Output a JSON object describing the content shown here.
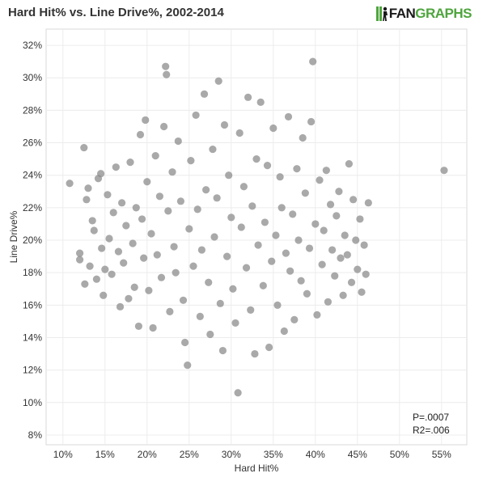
{
  "header": {
    "title": "Hard Hit% vs. Line Drive%, 2002-2014",
    "logo_left": "FAN",
    "logo_right": "GRAPHS",
    "logo_color": "#4fa53e"
  },
  "stats": {
    "p_value": "P=.0007",
    "r2": "R2=.006"
  },
  "chart_data": {
    "type": "scatter",
    "title": "Hard Hit% vs. Line Drive%, 2002-2014",
    "xlabel": "Hard Hit%",
    "ylabel": "Line Drive%",
    "xlim": [
      8,
      58
    ],
    "ylim": [
      7.4,
      33
    ],
    "x_ticks": [
      10,
      15,
      20,
      25,
      30,
      35,
      40,
      45,
      50,
      55
    ],
    "y_ticks": [
      8,
      10,
      12,
      14,
      16,
      18,
      20,
      22,
      24,
      26,
      28,
      30,
      32
    ],
    "x_tick_labels": [
      "10%",
      "15%",
      "20%",
      "25%",
      "30%",
      "35%",
      "40%",
      "45%",
      "50%",
      "55%"
    ],
    "y_tick_labels": [
      "8%",
      "10%",
      "12%",
      "14%",
      "16%",
      "18%",
      "20%",
      "22%",
      "24%",
      "26%",
      "28%",
      "30%",
      "32%"
    ],
    "grid": true,
    "point_color": "#8c8c8c",
    "points": [
      [
        10.8,
        23.5
      ],
      [
        12.0,
        19.2
      ],
      [
        12.0,
        18.8
      ],
      [
        12.5,
        25.7
      ],
      [
        12.6,
        17.3
      ],
      [
        12.8,
        22.5
      ],
      [
        13.0,
        23.2
      ],
      [
        13.2,
        18.4
      ],
      [
        13.5,
        21.2
      ],
      [
        13.7,
        20.6
      ],
      [
        14.0,
        17.6
      ],
      [
        14.2,
        23.8
      ],
      [
        14.5,
        24.1
      ],
      [
        14.6,
        19.5
      ],
      [
        14.8,
        16.6
      ],
      [
        15.0,
        18.2
      ],
      [
        15.3,
        22.8
      ],
      [
        15.5,
        20.1
      ],
      [
        15.8,
        17.9
      ],
      [
        16.0,
        21.7
      ],
      [
        16.3,
        24.5
      ],
      [
        16.6,
        19.3
      ],
      [
        16.8,
        15.9
      ],
      [
        17.0,
        22.3
      ],
      [
        17.2,
        18.6
      ],
      [
        17.5,
        20.9
      ],
      [
        17.8,
        16.4
      ],
      [
        18.0,
        24.8
      ],
      [
        18.3,
        19.8
      ],
      [
        18.5,
        17.1
      ],
      [
        18.7,
        22.0
      ],
      [
        19.0,
        14.7
      ],
      [
        19.2,
        26.5
      ],
      [
        19.4,
        21.3
      ],
      [
        19.6,
        18.9
      ],
      [
        19.8,
        27.4
      ],
      [
        20.0,
        23.6
      ],
      [
        20.2,
        16.9
      ],
      [
        20.5,
        20.4
      ],
      [
        20.7,
        14.6
      ],
      [
        21.0,
        25.2
      ],
      [
        21.2,
        19.1
      ],
      [
        21.5,
        22.7
      ],
      [
        21.7,
        17.7
      ],
      [
        22.0,
        27.0
      ],
      [
        22.2,
        30.7
      ],
      [
        22.3,
        30.2
      ],
      [
        22.5,
        21.8
      ],
      [
        22.7,
        15.6
      ],
      [
        23.0,
        24.2
      ],
      [
        23.2,
        19.6
      ],
      [
        23.4,
        18.0
      ],
      [
        23.7,
        26.1
      ],
      [
        24.0,
        22.4
      ],
      [
        24.3,
        16.3
      ],
      [
        24.5,
        13.7
      ],
      [
        24.8,
        12.3
      ],
      [
        25.0,
        20.7
      ],
      [
        25.2,
        24.9
      ],
      [
        25.5,
        18.4
      ],
      [
        25.8,
        27.7
      ],
      [
        26.0,
        21.9
      ],
      [
        26.3,
        15.3
      ],
      [
        26.5,
        19.4
      ],
      [
        26.8,
        29.0
      ],
      [
        27.0,
        23.1
      ],
      [
        27.3,
        17.4
      ],
      [
        27.5,
        14.2
      ],
      [
        27.8,
        25.6
      ],
      [
        28.0,
        20.2
      ],
      [
        28.3,
        22.6
      ],
      [
        28.5,
        29.8
      ],
      [
        28.7,
        16.1
      ],
      [
        29.0,
        13.2
      ],
      [
        29.2,
        27.1
      ],
      [
        29.5,
        19.0
      ],
      [
        29.7,
        24.0
      ],
      [
        30.0,
        21.4
      ],
      [
        30.2,
        17.0
      ],
      [
        30.5,
        14.9
      ],
      [
        30.8,
        10.6
      ],
      [
        31.0,
        26.6
      ],
      [
        31.2,
        20.8
      ],
      [
        31.5,
        23.3
      ],
      [
        31.8,
        18.3
      ],
      [
        32.0,
        28.8
      ],
      [
        32.3,
        15.7
      ],
      [
        32.5,
        22.1
      ],
      [
        32.8,
        13.0
      ],
      [
        33.0,
        25.0
      ],
      [
        33.2,
        19.7
      ],
      [
        33.5,
        28.5
      ],
      [
        33.8,
        17.2
      ],
      [
        34.0,
        21.1
      ],
      [
        34.3,
        24.6
      ],
      [
        34.5,
        13.4
      ],
      [
        34.8,
        18.7
      ],
      [
        35.0,
        26.9
      ],
      [
        35.3,
        20.3
      ],
      [
        35.5,
        16.0
      ],
      [
        35.8,
        23.9
      ],
      [
        36.0,
        22.0
      ],
      [
        36.3,
        14.4
      ],
      [
        36.5,
        19.2
      ],
      [
        36.8,
        27.6
      ],
      [
        37.0,
        18.1
      ],
      [
        37.3,
        21.6
      ],
      [
        37.5,
        15.1
      ],
      [
        37.8,
        24.4
      ],
      [
        38.0,
        20.0
      ],
      [
        38.3,
        17.5
      ],
      [
        38.5,
        26.3
      ],
      [
        38.8,
        22.9
      ],
      [
        39.0,
        16.7
      ],
      [
        39.3,
        19.5
      ],
      [
        39.5,
        27.3
      ],
      [
        39.7,
        31.0
      ],
      [
        40.0,
        21.0
      ],
      [
        40.2,
        15.4
      ],
      [
        40.5,
        23.7
      ],
      [
        40.8,
        18.5
      ],
      [
        41.0,
        20.6
      ],
      [
        41.3,
        24.3
      ],
      [
        41.5,
        16.2
      ],
      [
        41.8,
        22.2
      ],
      [
        42.0,
        19.4
      ],
      [
        42.3,
        17.8
      ],
      [
        42.5,
        21.5
      ],
      [
        42.8,
        23.0
      ],
      [
        43.0,
        18.9
      ],
      [
        43.3,
        16.6
      ],
      [
        43.5,
        20.3
      ],
      [
        43.8,
        19.1
      ],
      [
        44.0,
        24.7
      ],
      [
        44.3,
        17.4
      ],
      [
        44.5,
        22.5
      ],
      [
        44.8,
        20.0
      ],
      [
        45.0,
        18.2
      ],
      [
        45.3,
        21.3
      ],
      [
        45.5,
        16.8
      ],
      [
        45.8,
        19.7
      ],
      [
        46.0,
        17.9
      ],
      [
        46.3,
        22.3
      ],
      [
        55.3,
        24.3
      ]
    ]
  }
}
